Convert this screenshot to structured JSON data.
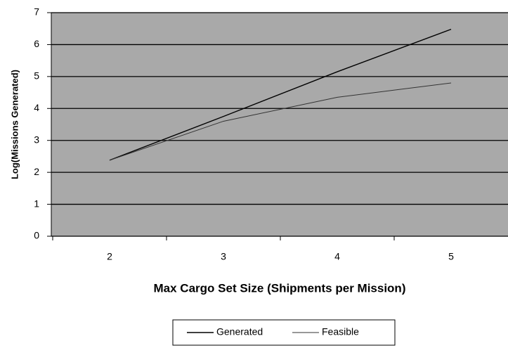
{
  "chart_data": {
    "type": "line",
    "categories": [
      "2",
      "3",
      "4",
      "5"
    ],
    "series": [
      {
        "name": "Generated",
        "color": "#000000",
        "values": [
          2.38,
          3.75,
          5.15,
          6.48
        ]
      },
      {
        "name": "Feasible",
        "color": "#333333",
        "values": [
          2.38,
          3.6,
          4.35,
          4.8
        ]
      }
    ],
    "ylabel": "Log(Missions Generated)",
    "xlabel": "Max Cargo Set Size (Shipments per Mission)",
    "ylim": [
      0,
      7
    ],
    "yticks": [
      0,
      1,
      2,
      3,
      4,
      5,
      6,
      7
    ],
    "grid": true,
    "legend": "bottom"
  }
}
